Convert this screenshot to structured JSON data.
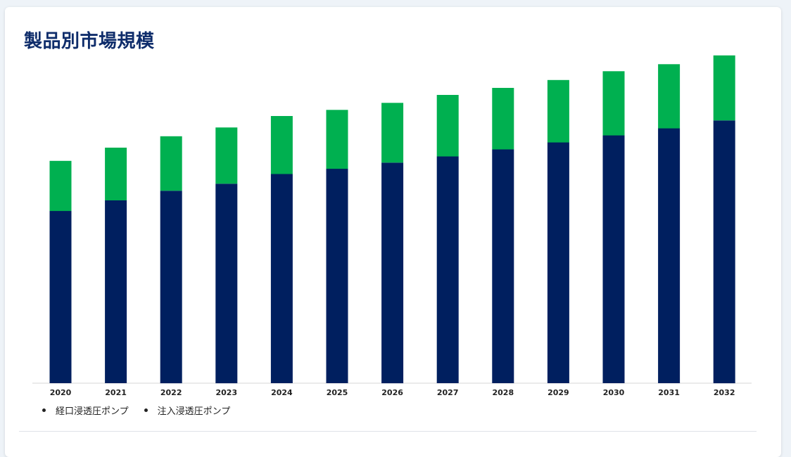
{
  "title": "製品別市場規模",
  "colors": {
    "oral": "#001f5f",
    "injection": "#00b050",
    "title": "#0f2d6b"
  },
  "chart_data": {
    "type": "bar",
    "stacked": true,
    "categories": [
      "2020",
      "2021",
      "2022",
      "2023",
      "2024",
      "2025",
      "2026",
      "2027",
      "2028",
      "2029",
      "2030",
      "2031",
      "2032"
    ],
    "series": [
      {
        "name": "経口浸透圧ポンプ",
        "values": [
          196,
          208,
          219,
          227,
          238,
          244,
          251,
          258,
          266,
          274,
          282,
          290,
          299
        ]
      },
      {
        "name": "注入浸透圧ポンプ",
        "values": [
          57,
          60,
          62,
          64,
          66,
          67,
          68,
          70,
          70,
          71,
          73,
          73,
          74
        ]
      }
    ],
    "ylim": [
      0,
      400
    ],
    "grid": false,
    "legend_position": "bottom-left",
    "title": "",
    "xlabel": "",
    "ylabel": ""
  }
}
